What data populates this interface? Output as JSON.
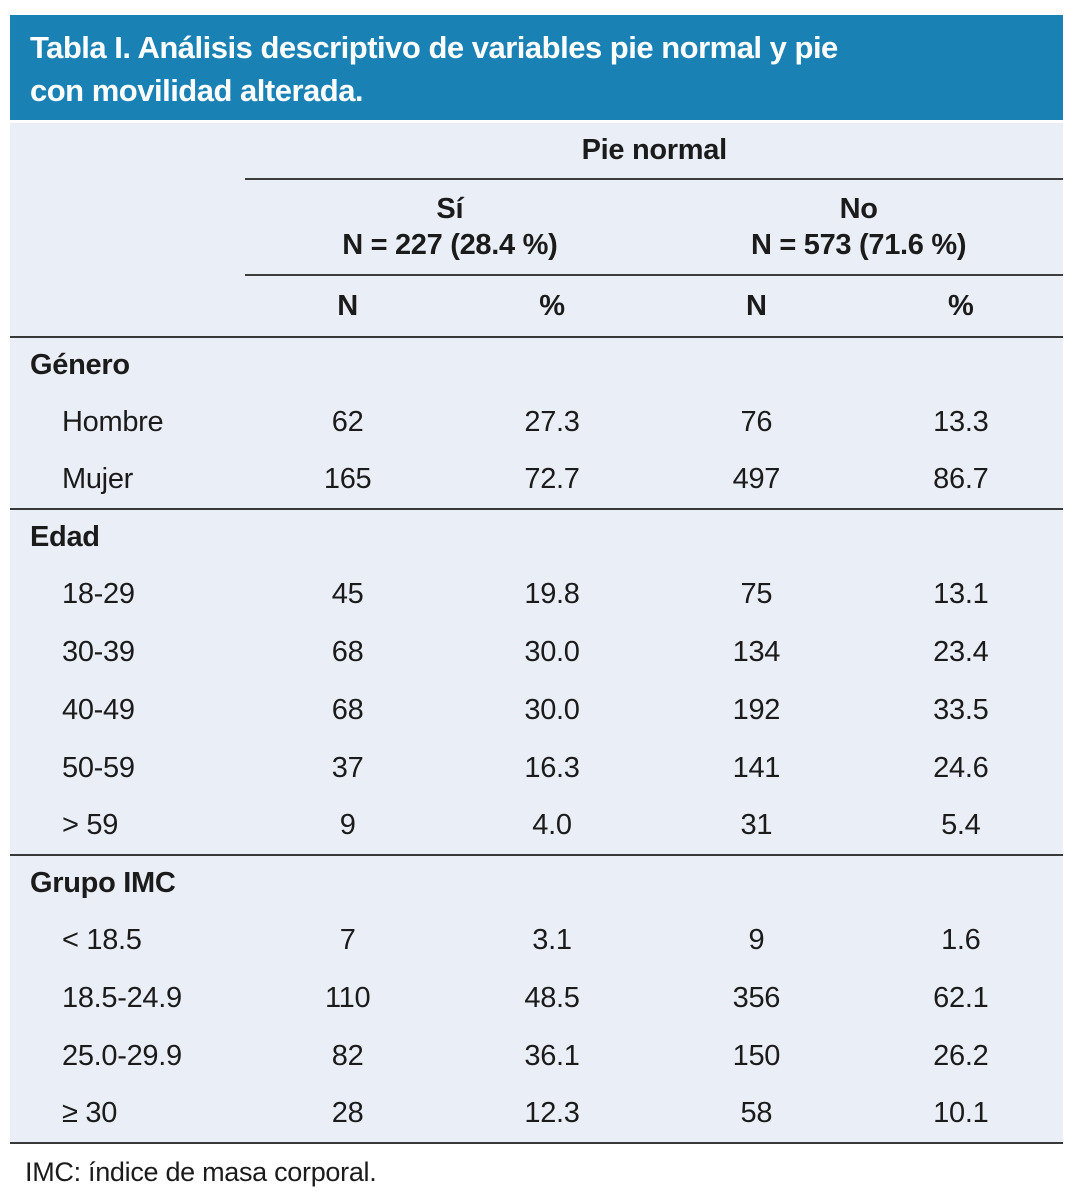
{
  "title": {
    "line1": "Tabla I. Análisis descriptivo de variables pie normal y pie",
    "line2": "con movilidad alterada."
  },
  "table": {
    "span_header": "Pie normal",
    "subgroups": [
      {
        "label": "Sí",
        "n_line": "N = 227 (28.4 %)"
      },
      {
        "label": "No",
        "n_line": "N = 573 (71.6 %)"
      }
    ],
    "columns": [
      "N",
      "%",
      "N",
      "%"
    ],
    "sections": [
      {
        "name": "Género",
        "rows": [
          {
            "label": "Hombre",
            "values": [
              "62",
              "27.3",
              "76",
              "13.3"
            ]
          },
          {
            "label": "Mujer",
            "values": [
              "165",
              "72.7",
              "497",
              "86.7"
            ]
          }
        ]
      },
      {
        "name": "Edad",
        "rows": [
          {
            "label": "18-29",
            "values": [
              "45",
              "19.8",
              "75",
              "13.1"
            ]
          },
          {
            "label": "30-39",
            "values": [
              "68",
              "30.0",
              "134",
              "23.4"
            ]
          },
          {
            "label": "40-49",
            "values": [
              "68",
              "30.0",
              "192",
              "33.5"
            ]
          },
          {
            "label": "50-59",
            "values": [
              "37",
              "16.3",
              "141",
              "24.6"
            ]
          },
          {
            "label": "> 59",
            "values": [
              "9",
              "4.0",
              "31",
              "5.4"
            ]
          }
        ]
      },
      {
        "name": "Grupo IMC",
        "rows": [
          {
            "label": "< 18.5",
            "values": [
              "7",
              "3.1",
              "9",
              "1.6"
            ]
          },
          {
            "label": "18.5-24.9",
            "values": [
              "110",
              "48.5",
              "356",
              "62.1"
            ]
          },
          {
            "label": "25.0-29.9",
            "values": [
              "82",
              "36.1",
              "150",
              "26.2"
            ]
          },
          {
            "label": "≥ 30",
            "values": [
              "28",
              "12.3",
              "58",
              "10.1"
            ]
          }
        ]
      }
    ]
  },
  "footnote": "IMC: índice de masa corporal.",
  "colors": {
    "title_bg": "#1981B3",
    "body_bg": "#EAEEF6",
    "rule": "#3d3d3d",
    "text": "#1b1b1b"
  }
}
